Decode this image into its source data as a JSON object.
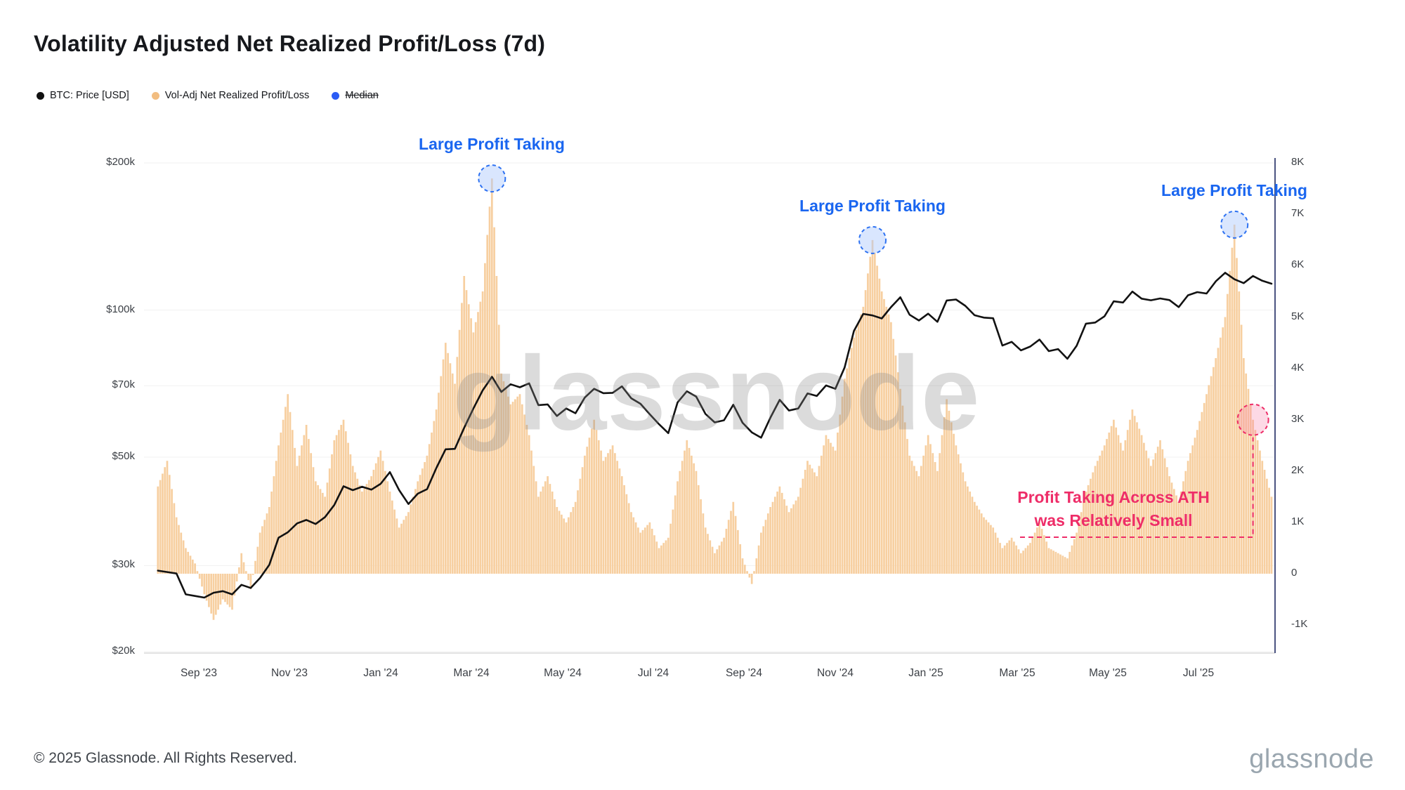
{
  "title": "Volatility Adjusted Net Realized Profit/Loss (7d)",
  "watermark": "glassnode",
  "legend": [
    {
      "label": "BTC: Price [USD]",
      "color": "#111111",
      "strikethrough": false
    },
    {
      "label": "Vol-Adj Net Realized Profit/Loss",
      "color": "#f2bd80",
      "strikethrough": false
    },
    {
      "label": "Median",
      "color": "#2b5cf5",
      "strikethrough": true
    }
  ],
  "footer": {
    "copyright": "© 2025 Glassnode. All Rights Reserved.",
    "brand": "glassnode"
  },
  "chart_data": {
    "type": "mixed",
    "x_ticks": [
      "Sep '23",
      "Nov '23",
      "Jan '24",
      "Mar '24",
      "May '24",
      "Jul '24",
      "Sep '24",
      "Nov '24",
      "Jan '25",
      "Mar '25",
      "May '25",
      "Jul '25"
    ],
    "left_axis": {
      "title": "BTC: Price [USD]",
      "scale": "log",
      "ticks": [
        {
          "label": "$200k",
          "value": 200
        },
        {
          "label": "$100k",
          "value": 100
        },
        {
          "label": "$70k",
          "value": 70
        },
        {
          "label": "$50k",
          "value": 50
        },
        {
          "label": "$30k",
          "value": 30
        },
        {
          "label": "$20k",
          "value": 20
        }
      ]
    },
    "right_axis": {
      "title": "Vol-Adj Net Realized Profit/Loss",
      "scale": "linear",
      "ticks": [
        {
          "label": "8K",
          "value": 8
        },
        {
          "label": "7K",
          "value": 7
        },
        {
          "label": "6K",
          "value": 6
        },
        {
          "label": "5K",
          "value": 5
        },
        {
          "label": "4K",
          "value": 4
        },
        {
          "label": "3K",
          "value": 3
        },
        {
          "label": "2K",
          "value": 2
        },
        {
          "label": "1K",
          "value": 1
        },
        {
          "label": "0",
          "value": 0
        },
        {
          "label": "-1K",
          "value": -1
        }
      ]
    },
    "series": [
      {
        "name": "BTC: Price [USD]",
        "type": "line",
        "axis": "left",
        "unit": "USD thousands",
        "color": "#121212",
        "values": [
          29.3,
          29.1,
          28.9,
          26.2,
          26.0,
          25.8,
          26.4,
          26.6,
          26.2,
          27.4,
          27.0,
          28.3,
          30.1,
          34.2,
          35.1,
          36.6,
          37.2,
          36.5,
          37.7,
          39.9,
          43.6,
          42.8,
          43.5,
          42.9,
          44.1,
          46.6,
          42.8,
          40.1,
          42.1,
          43.0,
          47.5,
          51.9,
          52.0,
          57.4,
          62.9,
          68.5,
          73.0,
          68.0,
          70.5,
          69.5,
          70.8,
          63.9,
          64.1,
          60.7,
          62.9,
          61.5,
          66.2,
          69.0,
          67.6,
          67.7,
          69.8,
          66.0,
          64.3,
          61.2,
          58.4,
          56.0,
          64.7,
          68.2,
          66.5,
          61.3,
          58.9,
          59.5,
          64.0,
          58.8,
          56.2,
          54.8,
          60.2,
          65.5,
          62.3,
          62.9,
          67.5,
          66.7,
          70.1,
          69.0,
          76.3,
          90.6,
          98.2,
          97.5,
          96.1,
          101.4,
          106.2,
          97.8,
          95.2,
          98.3,
          94.6,
          104.6,
          105.1,
          102.0,
          97.6,
          96.5,
          96.2,
          84.6,
          86.1,
          82.7,
          84.2,
          87.0,
          82.4,
          83.2,
          79.5,
          84.5,
          93.8,
          94.3,
          97.1,
          104.2,
          103.6,
          109.1,
          105.5,
          104.7,
          105.6,
          104.8,
          101.4,
          107.2,
          108.8,
          108.1,
          114.5,
          119.2,
          115.6,
          113.5,
          117.4,
          114.8,
          113.2
        ]
      },
      {
        "name": "Vol-Adj Net Realized Profit/Loss",
        "type": "bar",
        "axis": "right",
        "unit": "K",
        "color": "#f7cfa0",
        "values": [
          1.7,
          2.2,
          1.1,
          0.5,
          0.2,
          -0.4,
          -0.9,
          -0.5,
          -0.7,
          0.4,
          -0.3,
          0.8,
          1.3,
          2.5,
          3.5,
          2.1,
          2.9,
          1.8,
          1.5,
          2.6,
          3.0,
          2.1,
          1.6,
          1.9,
          2.4,
          1.6,
          0.9,
          1.2,
          1.8,
          2.3,
          3.2,
          4.5,
          3.7,
          5.8,
          4.7,
          5.5,
          7.7,
          3.9,
          3.3,
          3.5,
          2.7,
          1.5,
          1.9,
          1.3,
          1.0,
          1.4,
          2.3,
          3.0,
          2.2,
          2.5,
          1.9,
          1.2,
          0.8,
          1.0,
          0.5,
          0.7,
          1.8,
          2.6,
          2.0,
          0.9,
          0.4,
          0.7,
          1.4,
          0.3,
          -0.2,
          0.8,
          1.3,
          1.7,
          1.2,
          1.5,
          2.2,
          1.9,
          2.7,
          2.4,
          3.8,
          4.6,
          5.2,
          6.5,
          5.5,
          4.9,
          3.6,
          2.3,
          1.9,
          2.7,
          2.0,
          3.4,
          2.5,
          1.8,
          1.4,
          1.1,
          0.9,
          0.5,
          0.7,
          0.4,
          0.6,
          1.0,
          0.5,
          0.4,
          0.3,
          0.8,
          1.6,
          2.1,
          2.5,
          3.0,
          2.4,
          3.2,
          2.7,
          2.1,
          2.6,
          1.9,
          1.4,
          2.2,
          2.8,
          3.5,
          4.2,
          5.0,
          6.8,
          4.2,
          3.0,
          2.2,
          1.5
        ]
      }
    ],
    "annotations": [
      {
        "label": "Large Profit Taking",
        "style": "blue",
        "point_index": 36,
        "peak_value_k": 7.7
      },
      {
        "label": "Large Profit Taking",
        "style": "blue",
        "point_index": 77,
        "peak_value_k": 6.5
      },
      {
        "label": "Large Profit Taking",
        "style": "blue",
        "point_index": 116,
        "peak_value_k": 6.8
      },
      {
        "label_line1": "Profit Taking Across ATH",
        "label_line2": "was Relatively Small",
        "style": "pink",
        "point_index": 118,
        "peak_value_k": 3.0
      }
    ]
  }
}
